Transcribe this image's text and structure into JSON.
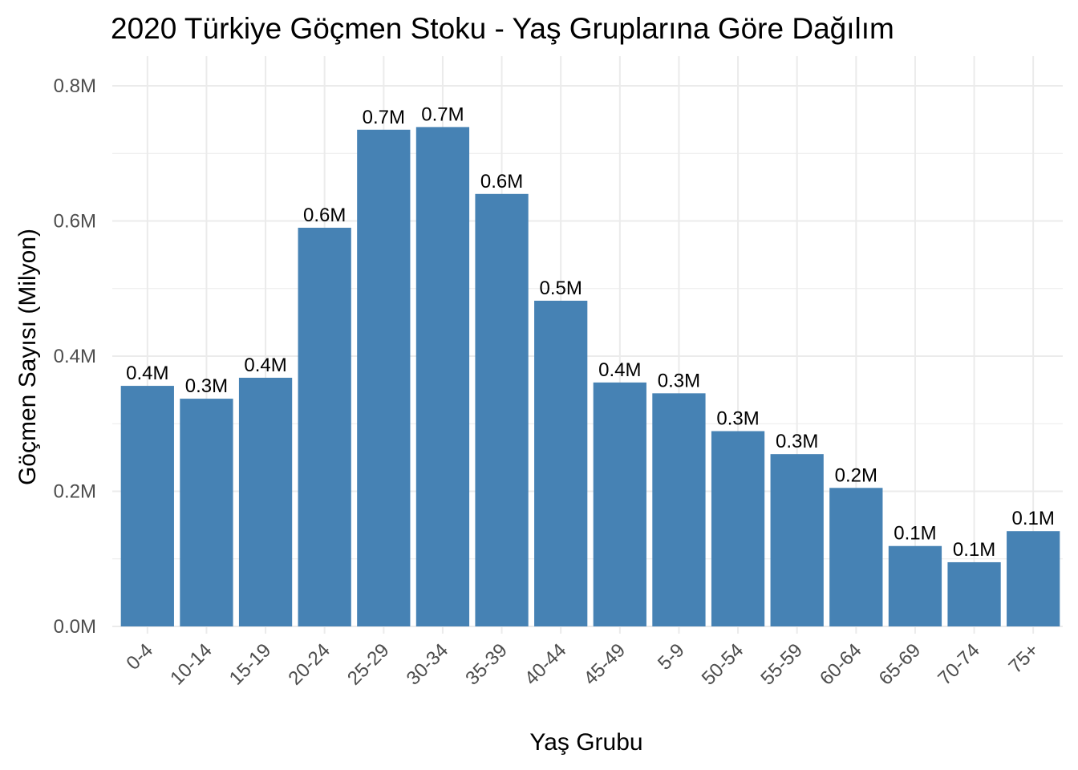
{
  "chart_data": {
    "type": "bar",
    "title": "2020 Türkiye Göçmen Stoku - Yaş Gruplarına Göre Dağılım",
    "xlabel": "Yaş Grubu",
    "ylabel": "Göçmen Sayısı (Milyon)",
    "categories": [
      "0-4",
      "10-14",
      "15-19",
      "20-24",
      "25-29",
      "30-34",
      "35-39",
      "40-44",
      "45-49",
      "5-9",
      "50-54",
      "55-59",
      "60-64",
      "65-69",
      "70-74",
      "75+"
    ],
    "values": [
      0.356,
      0.337,
      0.368,
      0.59,
      0.735,
      0.739,
      0.64,
      0.482,
      0.361,
      0.345,
      0.289,
      0.255,
      0.205,
      0.119,
      0.095,
      0.141
    ],
    "data_labels": [
      "0.4M",
      "0.3M",
      "0.4M",
      "0.6M",
      "0.7M",
      "0.7M",
      "0.6M",
      "0.5M",
      "0.4M",
      "0.3M",
      "0.3M",
      "0.3M",
      "0.2M",
      "0.1M",
      "0.1M",
      "0.1M"
    ],
    "ylim": [
      0,
      0.8
    ],
    "yticks": [
      0,
      0.2,
      0.4,
      0.6,
      0.8
    ],
    "ytick_labels": [
      "0.0M",
      "0.2M",
      "0.4M",
      "0.6M",
      "0.8M"
    ],
    "grid": true,
    "bar_color": "#4682B4",
    "grid_color": "#EBEBEB"
  }
}
